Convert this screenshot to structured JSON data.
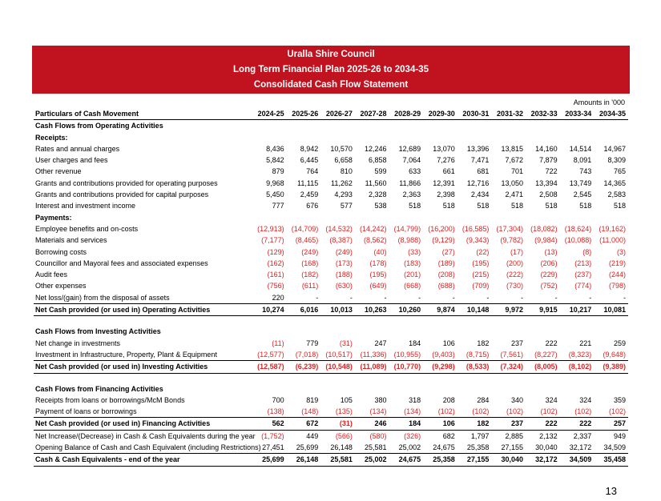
{
  "header": {
    "title": "Uralla Shire Council",
    "subtitle": "Long Term Financial Plan 2025-26 to 2034-35",
    "statement": "Consolidated Cash Flow Statement"
  },
  "units": "Amounts in '000",
  "columns": [
    "Particulars of Cash Movement",
    "2024-25",
    "2025-26",
    "2026-27",
    "2027-28",
    "2028-29",
    "2029-30",
    "2030-31",
    "2031-32",
    "2032-33",
    "2033-34",
    "2034-35"
  ],
  "rows": [
    {
      "type": "section",
      "label": "Cash Flows from Operating Activities"
    },
    {
      "type": "section",
      "label": "Receipts:"
    },
    {
      "type": "data",
      "label": "Rates and annual charges",
      "values": [
        "8,436",
        "8,942",
        "10,570",
        "12,246",
        "12,689",
        "13,070",
        "13,396",
        "13,815",
        "14,160",
        "14,514",
        "14,967"
      ]
    },
    {
      "type": "data",
      "label": "User charges and fees",
      "values": [
        "5,842",
        "6,445",
        "6,658",
        "6,858",
        "7,064",
        "7,276",
        "7,471",
        "7,672",
        "7,879",
        "8,091",
        "8,309"
      ]
    },
    {
      "type": "data",
      "label": "Other revenue",
      "values": [
        "879",
        "764",
        "810",
        "599",
        "633",
        "661",
        "681",
        "701",
        "722",
        "743",
        "765"
      ]
    },
    {
      "type": "data",
      "label": "Grants and contributions provided for operating purposes",
      "values": [
        "9,968",
        "11,115",
        "11,262",
        "11,560",
        "11,866",
        "12,391",
        "12,716",
        "13,050",
        "13,394",
        "13,749",
        "14,365"
      ]
    },
    {
      "type": "data",
      "label": "Grants and contributions provided for capital purposes",
      "values": [
        "5,450",
        "2,459",
        "4,293",
        "2,328",
        "2,363",
        "2,398",
        "2,434",
        "2,471",
        "2,508",
        "2,545",
        "2,583"
      ]
    },
    {
      "type": "data",
      "label": "Interest and investment income",
      "values": [
        "777",
        "676",
        "577",
        "538",
        "518",
        "518",
        "518",
        "518",
        "518",
        "518",
        "518"
      ]
    },
    {
      "type": "section",
      "label": "Payments:"
    },
    {
      "type": "data",
      "label": "Employee benefits and on-costs",
      "values": [
        "(12,913)",
        "(14,709)",
        "(14,532)",
        "(14,242)",
        "(14,799)",
        "(16,200)",
        "(16,585)",
        "(17,304)",
        "(18,082)",
        "(18,624)",
        "(19,162)"
      ]
    },
    {
      "type": "data",
      "label": "Materials and services",
      "values": [
        "(7,177)",
        "(8,465)",
        "(8,387)",
        "(8,562)",
        "(8,988)",
        "(9,129)",
        "(9,343)",
        "(9,782)",
        "(9,984)",
        "(10,088)",
        "(11,000)"
      ]
    },
    {
      "type": "data",
      "label": "Borrowing costs",
      "values": [
        "(129)",
        "(249)",
        "(249)",
        "(40)",
        "(33)",
        "(27)",
        "(22)",
        "(17)",
        "(13)",
        "(8)",
        "(3)"
      ]
    },
    {
      "type": "data",
      "label": "Councillor and Mayoral fees and associated expenses",
      "values": [
        "(162)",
        "(168)",
        "(173)",
        "(178)",
        "(183)",
        "(189)",
        "(195)",
        "(200)",
        "(206)",
        "(213)",
        "(219)"
      ]
    },
    {
      "type": "data",
      "label": "Audit fees",
      "values": [
        "(161)",
        "(182)",
        "(188)",
        "(195)",
        "(201)",
        "(208)",
        "(215)",
        "(222)",
        "(229)",
        "(237)",
        "(244)"
      ]
    },
    {
      "type": "data",
      "label": "Other expenses",
      "values": [
        "(756)",
        "(611)",
        "(630)",
        "(649)",
        "(668)",
        "(688)",
        "(709)",
        "(730)",
        "(752)",
        "(774)",
        "(798)"
      ]
    },
    {
      "type": "data",
      "label": "Net loss/(gain) from the disposal of assets",
      "values": [
        "220",
        "-",
        "-",
        "-",
        "-",
        "-",
        "-",
        "-",
        "-",
        "-",
        "-"
      ]
    },
    {
      "type": "total",
      "label": "Net Cash provided (or used in) Operating Activities",
      "values": [
        "10,274",
        "6,016",
        "10,013",
        "10,263",
        "10,260",
        "9,874",
        "10,148",
        "9,972",
        "9,915",
        "10,217",
        "10,081"
      ]
    },
    {
      "type": "blank"
    },
    {
      "type": "section",
      "label": "Cash Flows from Investing Activities"
    },
    {
      "type": "data",
      "label": "Net change in investments",
      "values": [
        "(11)",
        "779",
        "(31)",
        "247",
        "184",
        "106",
        "182",
        "237",
        "222",
        "221",
        "259"
      ]
    },
    {
      "type": "data",
      "label": "Investment in Infrastructure, Property, Plant & Equipment",
      "values": [
        "(12,577)",
        "(7,018)",
        "(10,517)",
        "(11,336)",
        "(10,955)",
        "(9,403)",
        "(8,715)",
        "(7,561)",
        "(8,227)",
        "(8,323)",
        "(9,648)"
      ]
    },
    {
      "type": "total",
      "label": "Net Cash provided (or used in) Investing Activities",
      "values": [
        "(12,587)",
        "(6,239)",
        "(10,548)",
        "(11,089)",
        "(10,770)",
        "(9,298)",
        "(8,533)",
        "(7,324)",
        "(8,005)",
        "(8,102)",
        "(9,389)"
      ]
    },
    {
      "type": "blank"
    },
    {
      "type": "section",
      "label": "Cash Flows from Financing Activities"
    },
    {
      "type": "data",
      "label": "Receipts from loans or borrowings/McM Bonds",
      "values": [
        "700",
        "819",
        "105",
        "380",
        "318",
        "208",
        "284",
        "340",
        "324",
        "324",
        "359"
      ]
    },
    {
      "type": "data",
      "label": "Payment of loans or borrowings",
      "values": [
        "(138)",
        "(148)",
        "(135)",
        "(134)",
        "(134)",
        "(102)",
        "(102)",
        "(102)",
        "(102)",
        "(102)",
        "(102)"
      ]
    },
    {
      "type": "total",
      "label": "Net Cash provided (or used in) Financing Activities",
      "values": [
        "562",
        "672",
        "(31)",
        "246",
        "184",
        "106",
        "182",
        "237",
        "222",
        "222",
        "257"
      ]
    },
    {
      "type": "data",
      "label": "Net Increase/(Decrease) in Cash & Cash Equivalents during the year",
      "values": [
        "(1,752)",
        "449",
        "(566)",
        "(580)",
        "(326)",
        "682",
        "1,797",
        "2,885",
        "2,132",
        "2,337",
        "949"
      ]
    },
    {
      "type": "data",
      "label": "Opening Balance of Cash and Cash Equivalent (including Restrictions)",
      "values": [
        "27,451",
        "25,699",
        "26,148",
        "25,581",
        "25,002",
        "24,675",
        "25,358",
        "27,155",
        "30,040",
        "32,172",
        "34,509"
      ]
    },
    {
      "type": "total",
      "label": "Cash & Cash Equivalents - end of the year",
      "values": [
        "25,699",
        "26,148",
        "25,581",
        "25,002",
        "24,675",
        "25,358",
        "27,155",
        "30,040",
        "32,172",
        "34,509",
        "35,458"
      ]
    }
  ],
  "page_number": "13",
  "colors": {
    "banner": "#c0121f",
    "negative": "#e02020"
  }
}
